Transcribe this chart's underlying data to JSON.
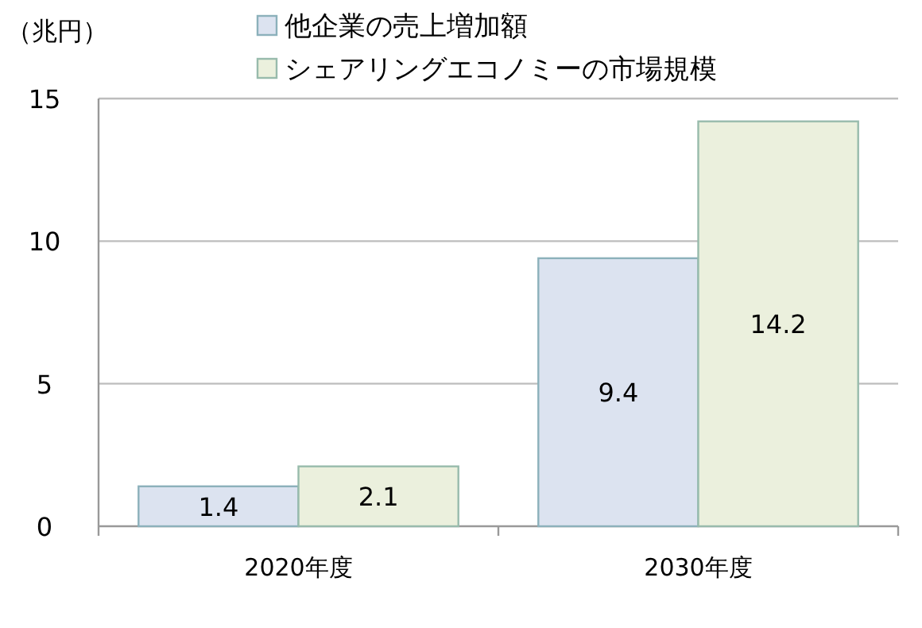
{
  "chart_data": {
    "type": "bar",
    "ylabel": "（兆円）",
    "categories": [
      "2020年度",
      "2030年度"
    ],
    "series": [
      {
        "name": "他企業の売上増加額",
        "color": "#dce3f0",
        "values": [
          1.4,
          9.4
        ]
      },
      {
        "name": "シェアリングエコノミーの市場規模",
        "color": "#ebf0dd",
        "values": [
          2.1,
          14.2
        ]
      }
    ],
    "ylim": [
      0,
      15
    ],
    "yticks": [
      0,
      5,
      10,
      15
    ],
    "grid": "y",
    "legend": "top",
    "data_labels": true
  }
}
